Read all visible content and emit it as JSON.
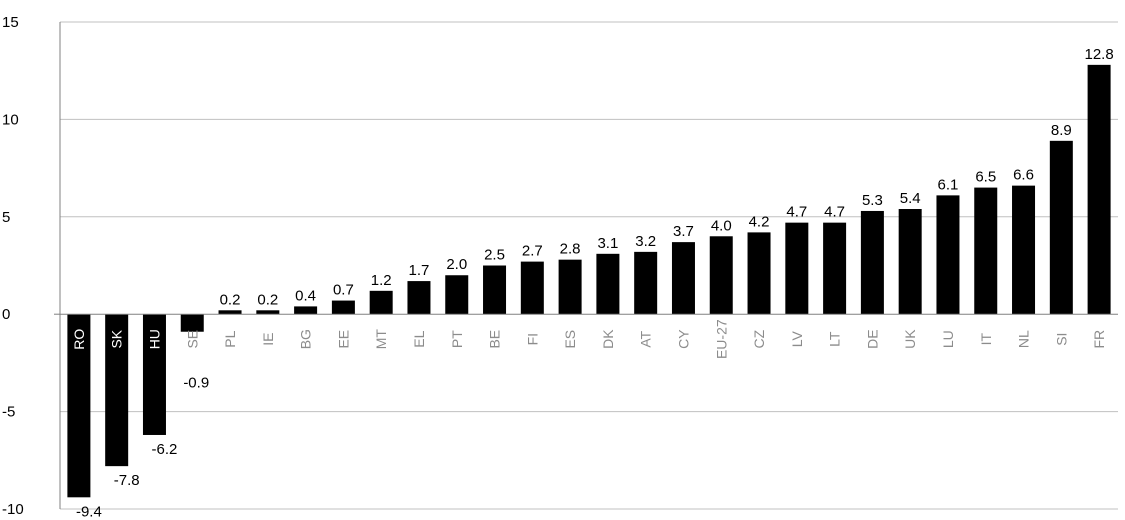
{
  "chart_data": {
    "type": "bar",
    "title": "",
    "xlabel": "",
    "ylabel": "",
    "ylim": [
      -10,
      15
    ],
    "y_ticks": [
      "15",
      "10",
      "5",
      "0",
      "-5",
      "-10"
    ],
    "grid": true,
    "legend": "none",
    "colors": {
      "bar": "#000000",
      "gridline": "#c0c0c0",
      "axis": "#808080",
      "label_on_dark": "#ffffff",
      "label_on_light": "#8c8c8c"
    },
    "categories": [
      "RO",
      "SK",
      "HU",
      "SE",
      "PL",
      "IE",
      "BG",
      "EE",
      "MT",
      "EL",
      "PT",
      "BE",
      "FI",
      "ES",
      "DK",
      "AT",
      "CY",
      "EU-27",
      "CZ",
      "LV",
      "LT",
      "DE",
      "UK",
      "LU",
      "IT",
      "NL",
      "SI",
      "FR"
    ],
    "values": [
      -9.4,
      -7.8,
      -6.2,
      -0.9,
      0.2,
      0.2,
      0.4,
      0.7,
      1.2,
      1.7,
      2.0,
      2.5,
      2.7,
      2.8,
      3.1,
      3.2,
      3.7,
      4.0,
      4.2,
      4.7,
      4.7,
      5.3,
      5.4,
      6.1,
      6.5,
      6.6,
      8.9,
      12.8
    ],
    "value_labels": [
      "-9.4",
      "-7.8",
      "-6.2",
      "-0.9",
      "0.2",
      "0.2",
      "0.4",
      "0.7",
      "1.2",
      "1.7",
      "2.0",
      "2.5",
      "2.7",
      "2.8",
      "3.1",
      "3.2",
      "3.7",
      "4.0",
      "4.2",
      "4.7",
      "4.7",
      "5.3",
      "5.4",
      "6.1",
      "6.5",
      "6.6",
      "8.9",
      "12.8"
    ]
  }
}
